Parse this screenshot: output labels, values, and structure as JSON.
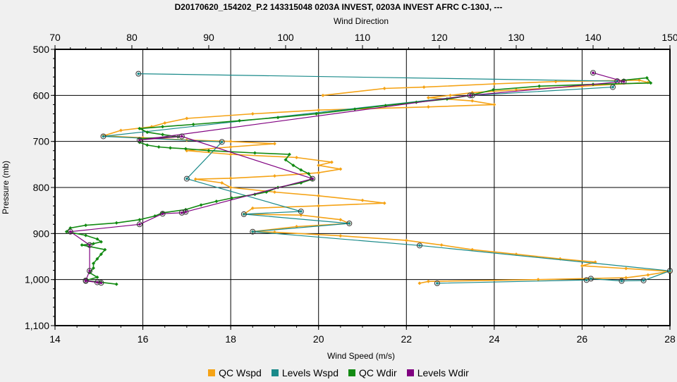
{
  "chart_data": {
    "type": "line",
    "title": "D20170620_154202_P.2 143315048 0203A INVEST, 0203A INVEST AFRC C-130J, ---",
    "top_axis_label": "Wind Direction",
    "xlabel": "Wind Speed (m/s)",
    "ylabel": "Pressure (mb)",
    "x_ticks": [
      "14",
      "16",
      "18",
      "20",
      "22",
      "24",
      "26",
      "28"
    ],
    "top_ticks": [
      "70",
      "80",
      "90",
      "100",
      "110",
      "120",
      "130",
      "140",
      "150"
    ],
    "y_ticks": [
      "500",
      "600",
      "700",
      "800",
      "900",
      "1,000",
      "1,100"
    ],
    "xlim": [
      14,
      28
    ],
    "top_xlim": [
      70,
      150
    ],
    "ylim": [
      500,
      1100
    ],
    "y_inverted": true,
    "grid": true,
    "legend_position": "bottom",
    "series": [
      {
        "name": "QC Wspd",
        "axis": "bottom",
        "color": "#f5a316",
        "points": [
          [
            20.1,
            600
          ],
          [
            21.5,
            585
          ],
          [
            22.4,
            582
          ],
          [
            24.0,
            575
          ],
          [
            25.4,
            570
          ],
          [
            27.3,
            567
          ],
          [
            27.5,
            572
          ],
          [
            26.0,
            580
          ],
          [
            24.5,
            588
          ],
          [
            23.5,
            594
          ],
          [
            23.0,
            600
          ],
          [
            22.5,
            605
          ],
          [
            23.5,
            612
          ],
          [
            24.0,
            620
          ],
          [
            22.5,
            625
          ],
          [
            20.0,
            632
          ],
          [
            18.5,
            640
          ],
          [
            17.0,
            650
          ],
          [
            16.5,
            660
          ],
          [
            16.2,
            668
          ],
          [
            15.5,
            676
          ],
          [
            15.1,
            688
          ],
          [
            16.0,
            692
          ],
          [
            17.0,
            697
          ],
          [
            18.0,
            700
          ],
          [
            19.0,
            705
          ],
          [
            18.0,
            712
          ],
          [
            17.0,
            720
          ],
          [
            18.0,
            728
          ],
          [
            19.5,
            735
          ],
          [
            20.3,
            745
          ],
          [
            20.0,
            752
          ],
          [
            20.5,
            760
          ],
          [
            20.0,
            768
          ],
          [
            19.0,
            775
          ],
          [
            18.0,
            780
          ],
          [
            17.2,
            782
          ],
          [
            17.8,
            790
          ],
          [
            18.0,
            800
          ],
          [
            19.0,
            810
          ],
          [
            20.0,
            818
          ],
          [
            21.0,
            828
          ],
          [
            21.5,
            834
          ],
          [
            20.0,
            840
          ],
          [
            18.5,
            845
          ],
          [
            18.3,
            858
          ],
          [
            19.6,
            860
          ],
          [
            20.5,
            870
          ],
          [
            20.7,
            878
          ],
          [
            19.5,
            885
          ],
          [
            18.5,
            896
          ],
          [
            19.0,
            897
          ],
          [
            20.5,
            905
          ],
          [
            22.0,
            915
          ],
          [
            22.8,
            925
          ],
          [
            23.5,
            935
          ],
          [
            24.5,
            945
          ],
          [
            25.5,
            955
          ],
          [
            26.3,
            962
          ],
          [
            26.0,
            970
          ],
          [
            27.0,
            976
          ],
          [
            28.0,
            982
          ],
          [
            27.5,
            990
          ],
          [
            27.0,
            996
          ],
          [
            25.0,
            1000
          ],
          [
            22.5,
            1004
          ],
          [
            22.3,
            1008
          ]
        ]
      },
      {
        "name": "Levels Wspd",
        "axis": "bottom",
        "color": "#1a8a8a",
        "points": [
          [
            15.9,
            553
          ],
          [
            26.8,
            569
          ],
          [
            26.7,
            582
          ],
          [
            23.5,
            600
          ],
          [
            15.1,
            689
          ],
          [
            17.8,
            701
          ],
          [
            17.0,
            781
          ],
          [
            19.6,
            852
          ],
          [
            18.3,
            858
          ],
          [
            20.7,
            878
          ],
          [
            18.5,
            896
          ],
          [
            22.3,
            926
          ],
          [
            28.0,
            981
          ],
          [
            27.4,
            1002
          ],
          [
            26.9,
            1003
          ],
          [
            26.2,
            998
          ],
          [
            26.1,
            1001
          ],
          [
            22.7,
            1008
          ]
        ]
      },
      {
        "name": "QC Wdir",
        "axis": "top",
        "color": "#128a12",
        "points": [
          [
            144.0,
            567
          ],
          [
            147.0,
            562
          ],
          [
            147.5,
            573
          ],
          [
            140.0,
            576
          ],
          [
            133.0,
            580
          ],
          [
            127.0,
            588
          ],
          [
            124.0,
            600
          ],
          [
            121.0,
            608
          ],
          [
            117.0,
            615
          ],
          [
            113.0,
            622
          ],
          [
            109.0,
            630
          ],
          [
            104.0,
            640
          ],
          [
            99.0,
            648
          ],
          [
            94.0,
            655
          ],
          [
            88.0,
            663
          ],
          [
            84.0,
            668
          ],
          [
            81.0,
            672
          ],
          [
            82.0,
            680
          ],
          [
            84.0,
            685
          ],
          [
            86.0,
            690
          ],
          [
            81.0,
            694
          ],
          [
            81.0,
            702
          ],
          [
            82.0,
            708
          ],
          [
            83.5,
            712
          ],
          [
            85.0,
            714
          ],
          [
            87.0,
            716
          ],
          [
            90.0,
            720
          ],
          [
            96.0,
            725
          ],
          [
            100.5,
            728
          ],
          [
            100.0,
            740
          ],
          [
            101.0,
            752
          ],
          [
            102.0,
            762
          ],
          [
            103.0,
            770
          ],
          [
            103.5,
            782
          ],
          [
            102.0,
            790
          ],
          [
            99.0,
            800
          ],
          [
            97.5,
            810
          ],
          [
            96.0,
            815
          ],
          [
            93.0,
            823
          ],
          [
            91.0,
            830
          ],
          [
            89.0,
            838
          ],
          [
            87.0,
            848
          ],
          [
            84.0,
            855
          ],
          [
            83.0,
            862
          ],
          [
            81.0,
            870
          ],
          [
            78.0,
            877
          ],
          [
            74.0,
            882
          ],
          [
            72.0,
            888
          ],
          [
            71.5,
            896
          ],
          [
            74.0,
            904
          ],
          [
            75.5,
            912
          ],
          [
            76.0,
            918
          ],
          [
            75.0,
            922
          ],
          [
            73.5,
            925
          ],
          [
            76.5,
            935
          ],
          [
            76.0,
            945
          ],
          [
            75.5,
            955
          ],
          [
            75.0,
            965
          ],
          [
            75.0,
            975
          ],
          [
            74.5,
            985
          ],
          [
            75.5,
            995
          ],
          [
            74.0,
            1002
          ],
          [
            76.0,
            1006
          ],
          [
            78.0,
            1010
          ]
        ]
      },
      {
        "name": "Levels Wdir",
        "axis": "top",
        "color": "#800080",
        "points": [
          [
            140.0,
            551
          ],
          [
            144.0,
            570
          ],
          [
            124.0,
            600
          ],
          [
            81.0,
            697
          ],
          [
            86.5,
            689
          ],
          [
            103.5,
            781
          ],
          [
            87.0,
            853
          ],
          [
            86.5,
            855
          ],
          [
            84.0,
            857
          ],
          [
            81.0,
            880
          ],
          [
            72.0,
            896
          ],
          [
            74.5,
            925
          ],
          [
            74.5,
            981
          ],
          [
            74.0,
            1002
          ],
          [
            75.5,
            1006
          ],
          [
            74.0,
            1003
          ],
          [
            76.0,
            1007
          ]
        ]
      }
    ]
  }
}
